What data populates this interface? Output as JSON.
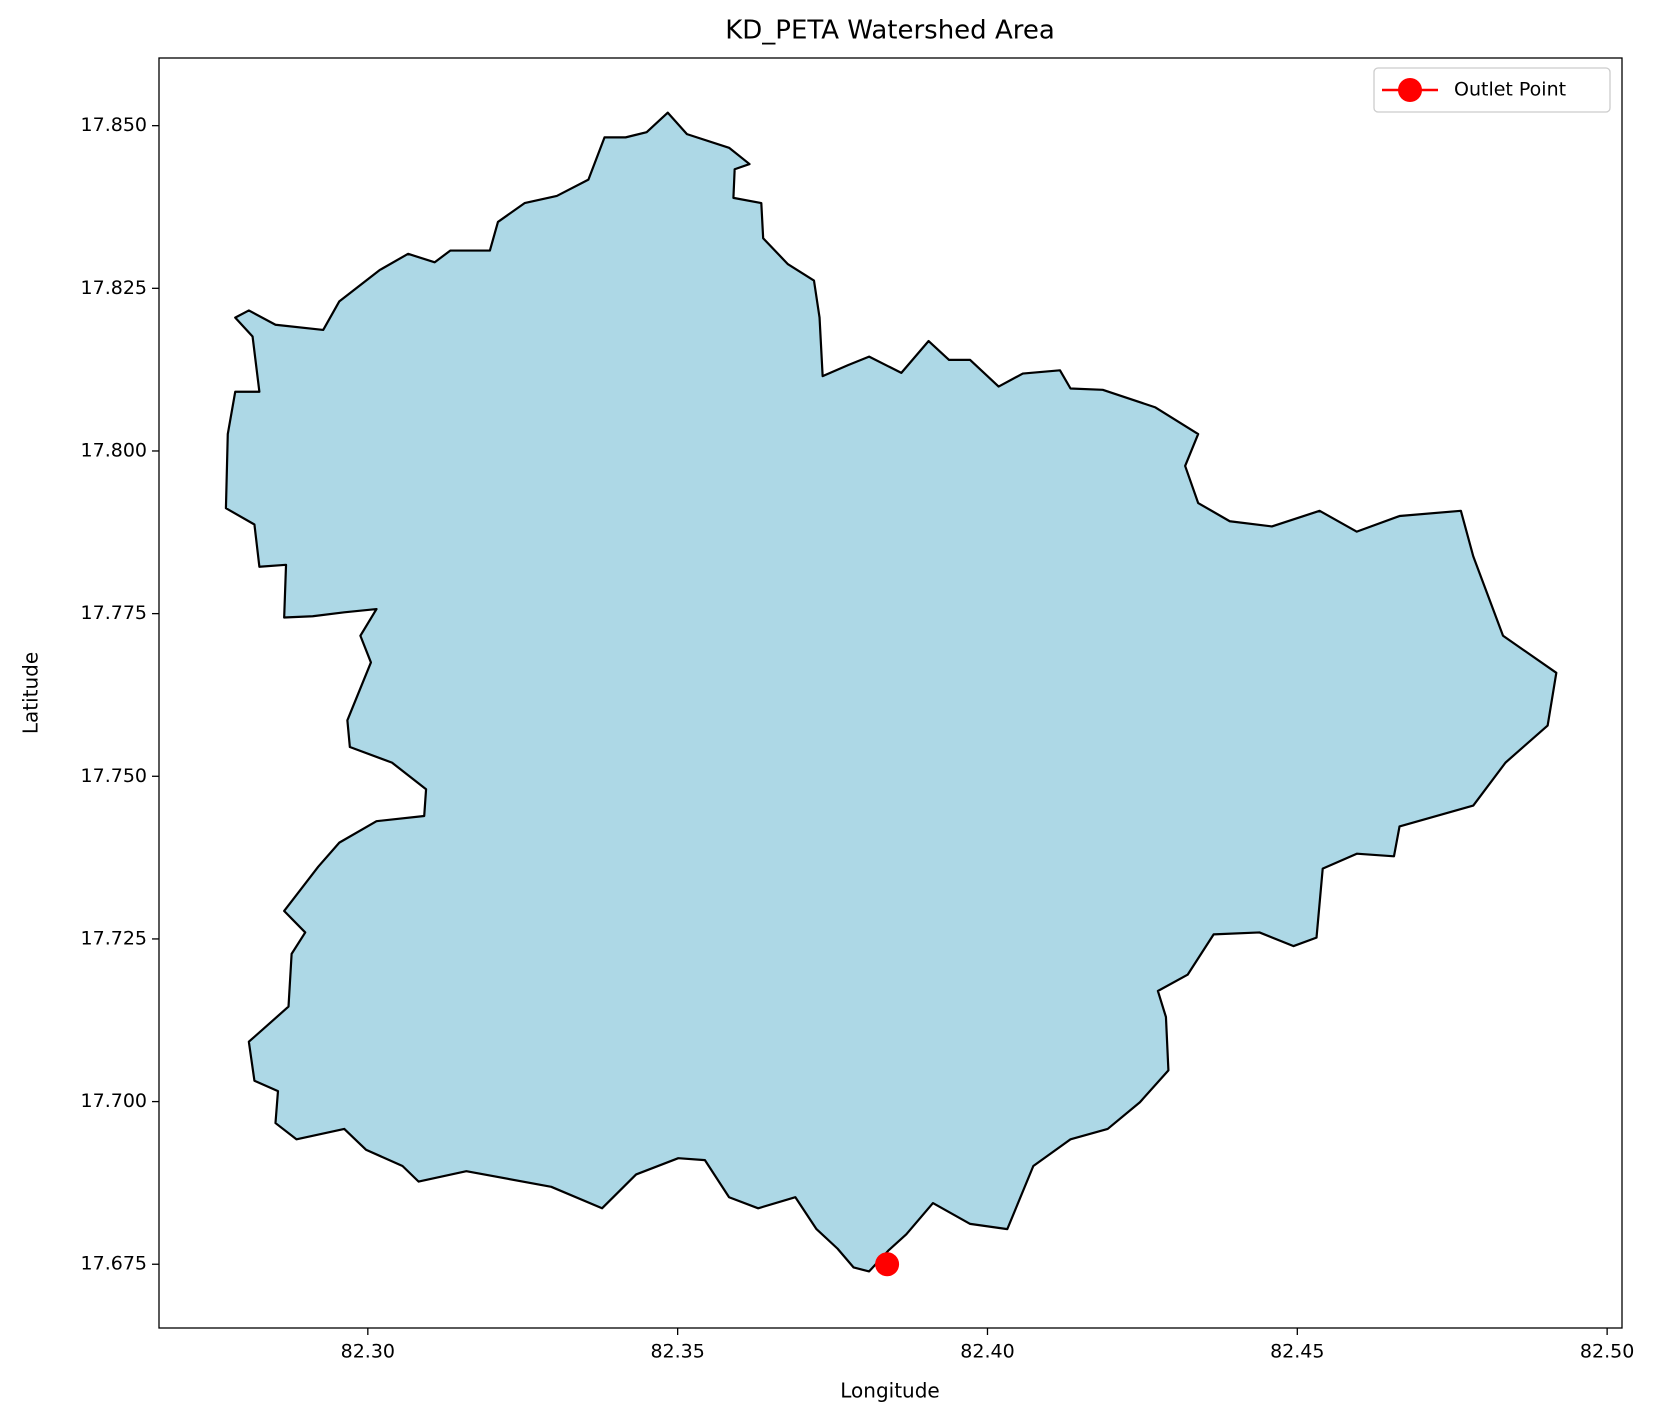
{
  "chart_data": {
    "type": "polygon",
    "title": "KD_PETA Watershed Area",
    "xlabel": "Longitude",
    "ylabel": "Latitude",
    "xlim": [
      82.2663,
      82.5024
    ],
    "ylim": [
      17.6652,
      17.8604
    ],
    "xticks": [
      {
        "value": 82.3,
        "label": "82.30"
      },
      {
        "value": 82.35,
        "label": "82.35"
      },
      {
        "value": 82.4,
        "label": "82.40"
      },
      {
        "value": 82.45,
        "label": "82.45"
      },
      {
        "value": 82.5,
        "label": "82.50"
      }
    ],
    "yticks": [
      {
        "value": 17.675,
        "label": "17.675"
      },
      {
        "value": 17.7,
        "label": "17.700"
      },
      {
        "value": 17.725,
        "label": "17.725"
      },
      {
        "value": 17.75,
        "label": "17.750"
      },
      {
        "value": 17.775,
        "label": "17.775"
      },
      {
        "value": 17.8,
        "label": "17.800"
      },
      {
        "value": 17.825,
        "label": "17.825"
      },
      {
        "value": 17.85,
        "label": "17.850"
      }
    ],
    "boundary": {
      "fill": "#add8e6",
      "edge": "#000000",
      "x": [
        82.3484,
        82.3515,
        82.3583,
        82.3616,
        82.3592,
        82.359,
        82.3635,
        82.3638,
        82.3678,
        82.372,
        82.3729,
        82.3734,
        82.3775,
        82.3809,
        82.3861,
        82.3905,
        82.3938,
        82.3972,
        82.4018,
        82.4057,
        82.4117,
        82.4134,
        82.4186,
        82.4271,
        82.434,
        82.4319,
        82.434,
        82.4391,
        82.4459,
        82.4536,
        82.4596,
        82.4665,
        82.4764,
        82.4784,
        82.4832,
        82.4918,
        82.4904,
        82.4836,
        82.4784,
        82.4665,
        82.4656,
        82.4596,
        82.4541,
        82.4531,
        82.4494,
        82.4439,
        82.4365,
        82.4323,
        82.4275,
        82.4288,
        82.4292,
        82.4246,
        82.4194,
        82.4134,
        82.4074,
        82.4032,
        82.3972,
        82.3912,
        82.3869,
        82.384,
        82.3809,
        82.3784,
        82.3758,
        82.3724,
        82.369,
        82.363,
        82.3583,
        82.3544,
        82.3501,
        82.3433,
        82.3378,
        82.3296,
        82.3159,
        82.3082,
        82.3056,
        82.2997,
        82.2962,
        82.2885,
        82.2851,
        82.2855,
        82.2817,
        82.2808,
        82.2872,
        82.2877,
        82.2899,
        82.2865,
        82.292,
        82.2954,
        82.3014,
        82.3091,
        82.3094,
        82.3039,
        82.2971,
        82.2967,
        82.3005,
        82.2988,
        82.3014,
        82.2962,
        82.2911,
        82.2865,
        82.2868,
        82.2825,
        82.2817,
        82.2771,
        82.2774,
        82.2786,
        82.2825,
        82.2814,
        82.2786,
        82.2808,
        82.2851,
        82.2928,
        82.2954,
        82.3019,
        82.3065,
        82.3108,
        82.3133,
        82.3197,
        82.321,
        82.3253,
        82.3305,
        82.3356,
        82.3382,
        82.3416,
        82.345
      ],
      "y": [
        17.852,
        17.8487,
        17.8466,
        17.8441,
        17.8433,
        17.8389,
        17.8381,
        17.8327,
        17.8287,
        17.8262,
        17.8205,
        17.8115,
        17.8132,
        17.8145,
        17.812,
        17.8169,
        17.814,
        17.814,
        17.8099,
        17.8119,
        17.8124,
        17.8096,
        17.8094,
        17.8067,
        17.8026,
        17.7977,
        17.792,
        17.7892,
        17.7884,
        17.7908,
        17.7876,
        17.79,
        17.7908,
        17.7838,
        17.7716,
        17.7659,
        17.7578,
        17.7521,
        17.7455,
        17.7423,
        17.7377,
        17.7381,
        17.7358,
        17.7252,
        17.7239,
        17.726,
        17.7257,
        17.7195,
        17.717,
        17.713,
        17.7048,
        17.6999,
        17.6958,
        17.6942,
        17.6901,
        17.6804,
        17.6812,
        17.6844,
        17.6796,
        17.6771,
        17.6739,
        17.6745,
        17.6774,
        17.6804,
        17.6853,
        17.6836,
        17.6853,
        17.691,
        17.6913,
        17.6888,
        17.6836,
        17.6869,
        17.6893,
        17.6877,
        17.6901,
        17.6926,
        17.6958,
        17.6942,
        17.6967,
        17.7016,
        17.7032,
        17.7092,
        17.7146,
        17.7227,
        17.726,
        17.7293,
        17.7361,
        17.7398,
        17.7431,
        17.7439,
        17.748,
        17.7521,
        17.7545,
        17.7586,
        17.7675,
        17.7716,
        17.7757,
        17.7752,
        17.7746,
        17.7744,
        17.7825,
        17.7822,
        17.7887,
        17.7912,
        17.8026,
        17.8091,
        17.8091,
        17.8176,
        17.8205,
        17.8216,
        17.8194,
        17.8186,
        17.823,
        17.8278,
        17.8303,
        17.829,
        17.8308,
        17.8308,
        17.8352,
        17.8381,
        17.8392,
        17.8417,
        17.8482,
        17.8482,
        17.849
      ]
    },
    "points": [
      {
        "name": "Outlet Point",
        "color": "#ff0000",
        "x": [
          82.3838
        ],
        "y": [
          17.675
        ]
      }
    ],
    "legend": "upper right"
  }
}
